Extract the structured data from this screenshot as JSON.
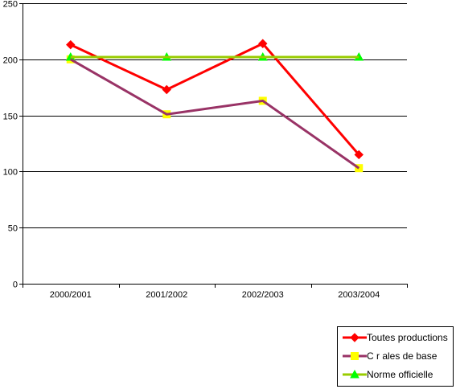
{
  "chart_data": {
    "type": "line",
    "categories": [
      "2000/2001",
      "2001/2002",
      "2002/2003",
      "2003/2004"
    ],
    "ylim": [
      0,
      250
    ],
    "yticks": [
      0,
      50,
      100,
      150,
      200,
      250
    ],
    "grid": true,
    "legend_position": "bottom-right",
    "series": [
      {
        "name": "Toutes productions",
        "values": [
          213,
          173,
          214,
          115
        ],
        "color": "#ff0000",
        "marker": "diamond"
      },
      {
        "name": "C  r  ales de base",
        "values": [
          200,
          151,
          163,
          103
        ],
        "color": "#993366",
        "marker": "square",
        "marker_color": "#ffff00"
      },
      {
        "name": "Norme officielle",
        "values": [
          202,
          202,
          202,
          202
        ],
        "color": "#99cc00",
        "marker": "triangle",
        "marker_color": "#00ff00"
      }
    ]
  }
}
